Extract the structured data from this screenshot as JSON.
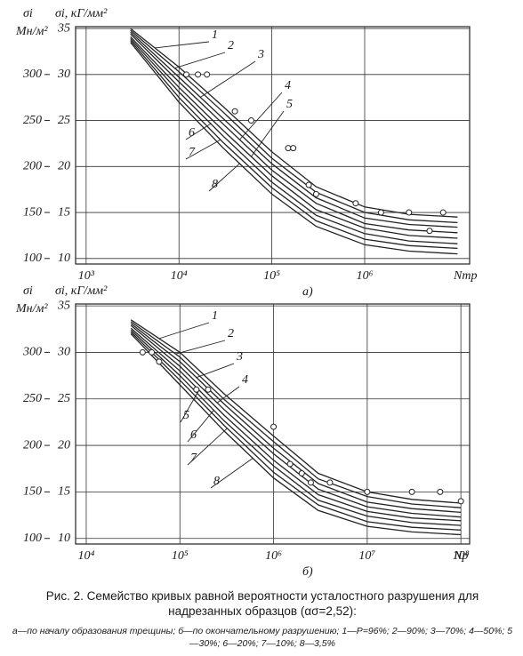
{
  "chart_data": [
    {
      "type": "line",
      "panel_label": "а)",
      "x_label": "Nтр",
      "y_label": "σi, кГ/мм²",
      "y2_label": "σi",
      "y2_unit": "Мн/м²",
      "log_x": true,
      "grid": true,
      "line_color": "#222",
      "xlim": [
        770,
        13500000
      ],
      "xticks": [
        {
          "value": 1000,
          "label": "10³"
        },
        {
          "value": 10000,
          "label": "10⁴"
        },
        {
          "value": 100000,
          "label": "10⁵"
        },
        {
          "value": 1000000,
          "label": "10⁶"
        }
      ],
      "ylim": [
        9.4,
        35.2
      ],
      "yticks": [
        10,
        15,
        20,
        25,
        30,
        35
      ],
      "y2lim": [
        94,
        352
      ],
      "y2ticks": [
        100,
        150,
        200,
        250,
        300
      ],
      "x": [
        3000,
        10000,
        30000,
        100000,
        300000,
        1000000,
        3000000,
        10000000
      ],
      "series": [
        {
          "name": "1",
          "values": [
            35,
            30.8,
            26.5,
            21.6,
            17.8,
            15.6,
            14.8,
            14.5
          ]
        },
        {
          "name": "2",
          "values": [
            34.8,
            30.3,
            25.9,
            20.9,
            17.2,
            15.0,
            14.2,
            13.9
          ]
        },
        {
          "name": "3",
          "values": [
            34.6,
            29.7,
            25.2,
            20.3,
            16.6,
            14.4,
            13.7,
            13.4
          ]
        },
        {
          "name": "4",
          "values": [
            34.4,
            29.2,
            24.6,
            19.6,
            16.0,
            13.8,
            13.1,
            12.8
          ]
        },
        {
          "name": "5",
          "values": [
            34.1,
            28.6,
            23.9,
            19.0,
            15.3,
            13.3,
            12.5,
            12.2
          ]
        },
        {
          "name": "6",
          "values": [
            33.9,
            28.1,
            23.3,
            18.3,
            14.7,
            12.7,
            11.9,
            11.6
          ]
        },
        {
          "name": "7",
          "values": [
            33.7,
            27.5,
            22.6,
            17.7,
            14.1,
            12.1,
            11.4,
            11.1
          ]
        },
        {
          "name": "8",
          "values": [
            33.5,
            27,
            22,
            17,
            13.5,
            11.5,
            10.8,
            10.5
          ]
        }
      ],
      "points": {
        "x": [
          12000,
          16000,
          20000,
          40000,
          60000,
          150000,
          170000,
          250000,
          300000,
          800000,
          1500000,
          3000000,
          5000000,
          7000000
        ],
        "y": [
          30,
          30,
          30,
          26,
          25,
          22,
          22,
          18,
          17,
          16,
          15,
          15,
          13,
          15
        ]
      }
    },
    {
      "type": "line",
      "panel_label": "б)",
      "x_label": "Np",
      "y_label": "σi, кГ/мм²",
      "y2_label": "σi",
      "y2_unit": "Мн/м²",
      "log_x": true,
      "grid": true,
      "line_color": "#222",
      "xlim": [
        7700,
        124000000
      ],
      "xticks": [
        {
          "value": 10000,
          "label": "10⁴"
        },
        {
          "value": 100000,
          "label": "10⁵"
        },
        {
          "value": 1000000,
          "label": "10⁶"
        },
        {
          "value": 10000000,
          "label": "10⁷"
        },
        {
          "value": 100000000,
          "label": "10⁸"
        }
      ],
      "ylim": [
        9.4,
        35.2
      ],
      "yticks": [
        10,
        15,
        20,
        25,
        30,
        35
      ],
      "y2lim": [
        94,
        352
      ],
      "y2ticks": [
        100,
        150,
        200,
        250,
        300
      ],
      "x": [
        30000,
        100000,
        300000,
        1000000,
        3000000,
        10000000,
        30000000,
        100000000
      ],
      "series": [
        {
          "name": "1",
          "values": [
            33.5,
            30,
            25.5,
            21,
            17,
            15,
            14.2,
            13.8
          ]
        },
        {
          "name": "2",
          "values": [
            33.3,
            29.5,
            24.9,
            20.4,
            16.4,
            14.5,
            13.7,
            13.3
          ]
        },
        {
          "name": "3",
          "values": [
            33.1,
            29,
            24.4,
            19.7,
            15.9,
            13.9,
            13.2,
            12.8
          ]
        },
        {
          "name": "4",
          "values": [
            32.9,
            28.5,
            23.8,
            19.1,
            15.3,
            13.4,
            12.7,
            12.3
          ]
        },
        {
          "name": "5",
          "values": [
            32.6,
            28,
            23.2,
            18.4,
            14.7,
            12.9,
            12.2,
            11.9
          ]
        },
        {
          "name": "6",
          "values": [
            32.4,
            27.5,
            22.6,
            17.8,
            14.1,
            12.4,
            11.7,
            11.4
          ]
        },
        {
          "name": "7",
          "values": [
            32.2,
            27,
            22.1,
            17.1,
            13.6,
            11.8,
            11.2,
            10.9
          ]
        },
        {
          "name": "8",
          "values": [
            32,
            26.5,
            21.5,
            16.5,
            13,
            11.3,
            10.7,
            10.4
          ]
        }
      ],
      "points": {
        "x": [
          40000,
          50000,
          60000,
          150000,
          200000,
          1000000,
          1500000,
          2000000,
          2500000,
          4000000,
          10000000,
          30000000,
          60000000,
          100000000
        ],
        "y": [
          30,
          30,
          29,
          26,
          26,
          22,
          18,
          17,
          16,
          16,
          15,
          15,
          15,
          14
        ]
      }
    }
  ],
  "caption": {
    "title": "Рис. 2. Семейство кривых равной вероятности усталостного разрушения для надрезанных образцов (ασ=2,52):",
    "legend": "а—по началу образования трещины; б—по окончательному разрушению; 1—P=96%; 2—90%; 3—70%; 4—50%; 5—30%; 6—20%; 7—10%; 8—3,5%"
  }
}
